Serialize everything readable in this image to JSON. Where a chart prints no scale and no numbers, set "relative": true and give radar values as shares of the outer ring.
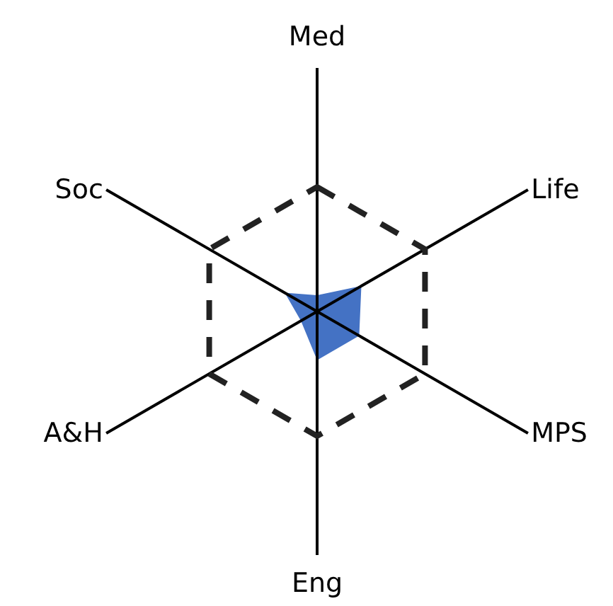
{
  "chart_data": {
    "type": "radar",
    "relative": true,
    "grid": true,
    "categories": [
      "Med",
      "Life",
      "MPS",
      "Eng",
      "A&H",
      "Soc"
    ],
    "series": [
      {
        "color": "#4472c4",
        "values": [
          0.13,
          0.41,
          0.39,
          0.39,
          0.15,
          0.3
        ]
      }
    ]
  }
}
